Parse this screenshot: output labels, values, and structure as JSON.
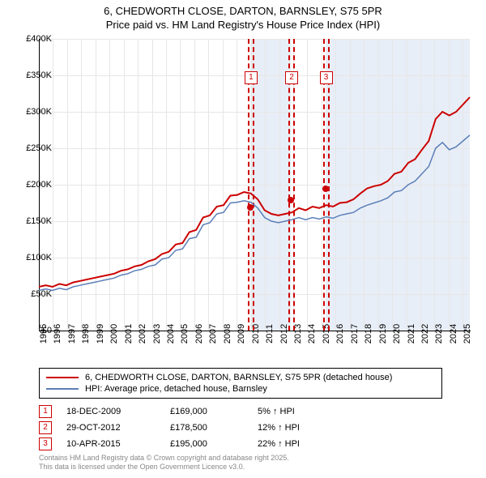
{
  "title_line1": "6, CHEDWORTH CLOSE, DARTON, BARNSLEY, S75 5PR",
  "title_line2": "Price paid vs. HM Land Registry's House Price Index (HPI)",
  "chart": {
    "type": "line",
    "background_color": "#ffffff",
    "grid_color": "#e6e6e6",
    "shaded_color": "#e8eef7",
    "xlim": [
      1995,
      2025.5
    ],
    "ylim": [
      0,
      400000
    ],
    "ytick_step": 50000,
    "yticks": [
      "£0",
      "£50K",
      "£100K",
      "£150K",
      "£200K",
      "£250K",
      "£300K",
      "£350K",
      "£400K"
    ],
    "xticks": [
      1995,
      1996,
      1997,
      1998,
      1999,
      2000,
      2001,
      2002,
      2003,
      2004,
      2005,
      2006,
      2007,
      2008,
      2009,
      2010,
      2011,
      2012,
      2013,
      2014,
      2015,
      2016,
      2017,
      2018,
      2019,
      2020,
      2021,
      2022,
      2023,
      2024,
      2025
    ],
    "series": [
      {
        "name": "6, CHEDWORTH CLOSE, DARTON, BARNSLEY, S75 5PR (detached house)",
        "color": "#cc0000",
        "line_width": 2,
        "y": [
          60,
          62,
          60,
          64,
          62,
          66,
          68,
          70,
          72,
          74,
          76,
          78,
          82,
          84,
          88,
          90,
          95,
          98,
          105,
          108,
          118,
          120,
          135,
          138,
          155,
          158,
          170,
          172,
          185,
          186,
          190,
          188,
          180,
          165,
          160,
          158,
          160,
          162,
          168,
          165,
          170,
          168,
          172,
          170,
          175,
          176,
          180,
          188,
          195,
          198,
          200,
          205,
          215,
          218,
          230,
          235,
          248,
          260,
          290,
          300,
          295,
          300,
          310,
          320
        ]
      },
      {
        "name": "HPI: Average price, detached house, Barnsley",
        "color": "#5b7fb8",
        "line_width": 1.5,
        "y": [
          55,
          57,
          55,
          58,
          56,
          60,
          62,
          64,
          66,
          68,
          70,
          72,
          76,
          78,
          82,
          84,
          88,
          90,
          98,
          100,
          110,
          112,
          126,
          128,
          145,
          148,
          160,
          162,
          175,
          176,
          178,
          176,
          168,
          155,
          150,
          148,
          150,
          152,
          155,
          152,
          155,
          153,
          156,
          154,
          158,
          160,
          162,
          168,
          172,
          175,
          178,
          182,
          190,
          192,
          200,
          205,
          215,
          225,
          250,
          258,
          248,
          252,
          260,
          268
        ]
      }
    ],
    "sales": [
      {
        "num": "1",
        "year": 2009.96,
        "price": 169000,
        "date": "18-DEC-2009",
        "price_str": "£169,000",
        "pct": "5% ↑ HPI"
      },
      {
        "num": "2",
        "year": 2012.83,
        "price": 178500,
        "date": "29-OCT-2012",
        "price_str": "£178,500",
        "pct": "12% ↑ HPI"
      },
      {
        "num": "3",
        "year": 2015.27,
        "price": 195000,
        "date": "10-APR-2015",
        "price_str": "£195,000",
        "pct": "22% ↑ HPI"
      }
    ],
    "label_fontsize": 11,
    "title_fontsize": 13,
    "marker_color": "#cc0000",
    "dot_color": "#cc0000"
  },
  "footer_line1": "Contains HM Land Registry data © Crown copyright and database right 2025.",
  "footer_line2": "This data is licensed under the Open Government Licence v3.0."
}
